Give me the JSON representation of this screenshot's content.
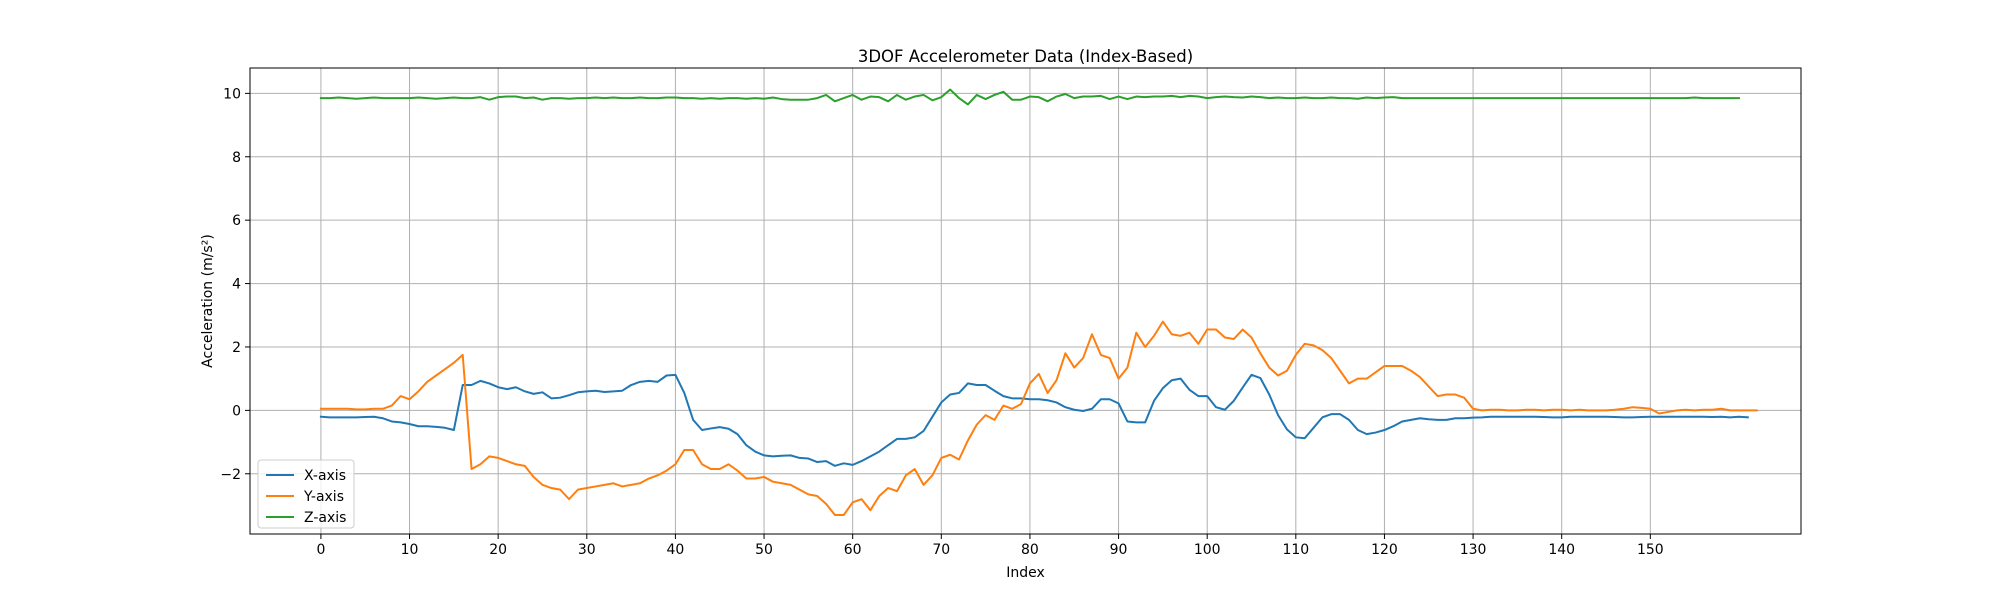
{
  "chart_data": {
    "type": "line",
    "title": "3DOF Accelerometer Data (Index-Based)",
    "xlabel": "Index",
    "ylabel": "Acceleration (m/s²)",
    "xlim": [
      -8,
      167
    ],
    "ylim": [
      -3.9,
      10.8
    ],
    "xticks": [
      0,
      10,
      20,
      30,
      40,
      50,
      60,
      70,
      80,
      90,
      100,
      110,
      120,
      130,
      140,
      150
    ],
    "yticks": [
      -2,
      0,
      2,
      4,
      6,
      8,
      10
    ],
    "grid": true,
    "legend_position": "lower-left",
    "series": [
      {
        "name": "X-axis",
        "color": "#1f77b4",
        "values": [
          -0.2,
          -0.22,
          -0.22,
          -0.22,
          -0.22,
          -0.21,
          -0.2,
          -0.25,
          -0.35,
          -0.38,
          -0.43,
          -0.5,
          -0.5,
          -0.52,
          -0.55,
          -0.62,
          0.8,
          0.8,
          0.93,
          0.85,
          0.73,
          0.67,
          0.73,
          0.6,
          0.52,
          0.57,
          0.38,
          0.4,
          0.48,
          0.57,
          0.6,
          0.62,
          0.58,
          0.6,
          0.62,
          0.8,
          0.9,
          0.93,
          0.9,
          1.1,
          1.12,
          0.55,
          -0.3,
          -0.62,
          -0.57,
          -0.53,
          -0.58,
          -0.75,
          -1.1,
          -1.3,
          -1.42,
          -1.45,
          -1.43,
          -1.42,
          -1.5,
          -1.52,
          -1.63,
          -1.6,
          -1.75,
          -1.67,
          -1.72,
          -1.6,
          -1.45,
          -1.3,
          -1.1,
          -0.9,
          -0.9,
          -0.85,
          -0.65,
          -0.2,
          0.25,
          0.5,
          0.55,
          0.85,
          0.8,
          0.8,
          0.62,
          0.45,
          0.38,
          0.38,
          0.35,
          0.35,
          0.32,
          0.25,
          0.1,
          0.02,
          -0.02,
          0.05,
          0.35,
          0.35,
          0.22,
          -0.35,
          -0.38,
          -0.38,
          0.3,
          0.7,
          0.95,
          1.0,
          0.65,
          0.45,
          0.45,
          0.1,
          0.02,
          0.3,
          0.72,
          1.12,
          1.02,
          0.5,
          -0.15,
          -0.6,
          -0.85,
          -0.88,
          -0.55,
          -0.22,
          -0.12,
          -0.12,
          -0.3,
          -0.62,
          -0.75,
          -0.7,
          -0.62,
          -0.5,
          -0.35,
          -0.3,
          -0.25,
          -0.28,
          -0.3,
          -0.3,
          -0.25,
          -0.25,
          -0.23,
          -0.22,
          -0.2,
          -0.2,
          -0.2,
          -0.2,
          -0.2,
          -0.2,
          -0.21,
          -0.22,
          -0.22,
          -0.2,
          -0.2,
          -0.2,
          -0.2,
          -0.2,
          -0.21,
          -0.22,
          -0.22,
          -0.21,
          -0.2,
          -0.2,
          -0.2,
          -0.2,
          -0.2,
          -0.2,
          -0.2,
          -0.21,
          -0.2,
          -0.22,
          -0.2,
          -0.22
        ]
      },
      {
        "name": "Y-axis",
        "color": "#ff7f0e",
        "values": [
          0.05,
          0.05,
          0.05,
          0.05,
          0.03,
          0.03,
          0.05,
          0.05,
          0.15,
          0.45,
          0.35,
          0.6,
          0.9,
          1.1,
          1.3,
          1.5,
          1.75,
          -1.85,
          -1.7,
          -1.45,
          -1.5,
          -1.6,
          -1.7,
          -1.75,
          -2.1,
          -2.35,
          -2.45,
          -2.5,
          -2.8,
          -2.5,
          -2.45,
          -2.4,
          -2.35,
          -2.3,
          -2.4,
          -2.35,
          -2.3,
          -2.15,
          -2.05,
          -1.9,
          -1.7,
          -1.25,
          -1.25,
          -1.7,
          -1.85,
          -1.85,
          -1.7,
          -1.9,
          -2.15,
          -2.15,
          -2.1,
          -2.25,
          -2.3,
          -2.35,
          -2.5,
          -2.65,
          -2.7,
          -2.95,
          -3.3,
          -3.3,
          -2.9,
          -2.8,
          -3.15,
          -2.7,
          -2.45,
          -2.55,
          -2.05,
          -1.85,
          -2.35,
          -2.05,
          -1.5,
          -1.4,
          -1.55,
          -0.95,
          -0.45,
          -0.15,
          -0.3,
          0.15,
          0.05,
          0.2,
          0.85,
          1.15,
          0.55,
          0.95,
          1.8,
          1.35,
          1.65,
          2.4,
          1.75,
          1.65,
          1.0,
          1.35,
          2.45,
          2.0,
          2.35,
          2.8,
          2.4,
          2.35,
          2.45,
          2.1,
          2.55,
          2.55,
          2.3,
          2.25,
          2.55,
          2.3,
          1.8,
          1.35,
          1.1,
          1.25,
          1.75,
          2.1,
          2.05,
          1.9,
          1.65,
          1.25,
          0.85,
          1.0,
          1.0,
          1.2,
          1.4,
          1.4,
          1.4,
          1.25,
          1.05,
          0.75,
          0.45,
          0.5,
          0.5,
          0.4,
          0.05,
          0.0,
          0.02,
          0.02,
          0.0,
          0.0,
          0.02,
          0.02,
          0.0,
          0.02,
          0.02,
          0.0,
          0.02,
          0.0,
          0.0,
          0.0,
          0.02,
          0.05,
          0.1,
          0.08,
          0.05,
          -0.1,
          -0.05,
          0.0,
          0.02,
          0.0,
          0.02,
          0.02,
          0.05,
          0.0,
          0.0,
          0.0,
          0.0
        ]
      },
      {
        "name": "Z-axis",
        "color": "#2ca02c",
        "values": [
          9.85,
          9.85,
          9.87,
          9.85,
          9.83,
          9.85,
          9.87,
          9.85,
          9.85,
          9.85,
          9.85,
          9.87,
          9.85,
          9.83,
          9.85,
          9.87,
          9.85,
          9.85,
          9.88,
          9.8,
          9.88,
          9.9,
          9.9,
          9.85,
          9.87,
          9.8,
          9.85,
          9.85,
          9.83,
          9.85,
          9.85,
          9.87,
          9.85,
          9.87,
          9.85,
          9.85,
          9.87,
          9.85,
          9.85,
          9.87,
          9.87,
          9.85,
          9.85,
          9.83,
          9.85,
          9.83,
          9.85,
          9.85,
          9.83,
          9.85,
          9.83,
          9.87,
          9.82,
          9.8,
          9.8,
          9.8,
          9.85,
          9.95,
          9.75,
          9.85,
          9.95,
          9.8,
          9.9,
          9.88,
          9.75,
          9.95,
          9.8,
          9.9,
          9.95,
          9.78,
          9.88,
          10.12,
          9.85,
          9.65,
          9.95,
          9.82,
          9.95,
          10.05,
          9.8,
          9.8,
          9.9,
          9.88,
          9.75,
          9.9,
          9.98,
          9.85,
          9.9,
          9.9,
          9.92,
          9.82,
          9.9,
          9.82,
          9.9,
          9.88,
          9.9,
          9.9,
          9.92,
          9.88,
          9.92,
          9.9,
          9.85,
          9.88,
          9.9,
          9.88,
          9.87,
          9.9,
          9.88,
          9.85,
          9.87,
          9.85,
          9.85,
          9.87,
          9.85,
          9.85,
          9.87,
          9.85,
          9.85,
          9.83,
          9.87,
          9.85,
          9.87,
          9.88,
          9.85,
          9.85,
          9.85,
          9.85,
          9.85,
          9.85,
          9.85,
          9.85,
          9.85,
          9.85,
          9.85,
          9.85,
          9.85,
          9.85,
          9.85,
          9.85,
          9.85,
          9.85,
          9.85,
          9.85,
          9.85,
          9.85,
          9.85,
          9.85,
          9.85,
          9.85,
          9.85,
          9.85,
          9.85,
          9.85,
          9.85,
          9.85,
          9.85,
          9.87,
          9.85,
          9.85,
          9.85,
          9.85,
          9.85
        ]
      }
    ]
  }
}
